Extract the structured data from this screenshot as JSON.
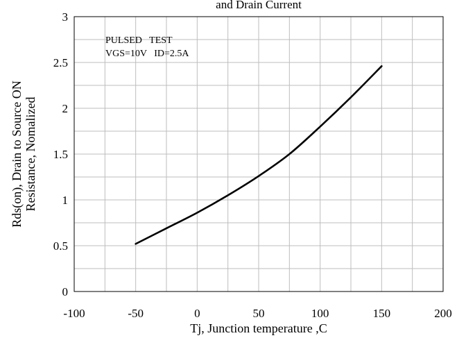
{
  "chart_data": {
    "type": "line",
    "title_partial": "and Drain Current",
    "xlabel": "Tj, Junction temperature ,C",
    "ylabel_line1": "Rds(on), Drain to Source ON",
    "ylabel_line2": "Resistance, Nomalized",
    "xlim": [
      -100,
      200
    ],
    "ylim": [
      0,
      3
    ],
    "x_ticks": [
      "-100",
      "-50",
      "0",
      "50",
      "100",
      "150",
      "200"
    ],
    "y_ticks": [
      "0",
      "0.5",
      "1",
      "1.5",
      "2",
      "2.5",
      "3"
    ],
    "x_minor_step": 25,
    "y_minor_step": 0.25,
    "grid": true,
    "annotations": [
      "PULSED   TEST",
      "VGS=10V   ID=2.5A"
    ],
    "series": [
      {
        "x": [
          -50,
          -25,
          0,
          25,
          50,
          75,
          100,
          125,
          150
        ],
        "y": [
          0.52,
          0.69,
          0.86,
          1.05,
          1.26,
          1.5,
          1.8,
          2.12,
          2.46
        ]
      }
    ]
  }
}
